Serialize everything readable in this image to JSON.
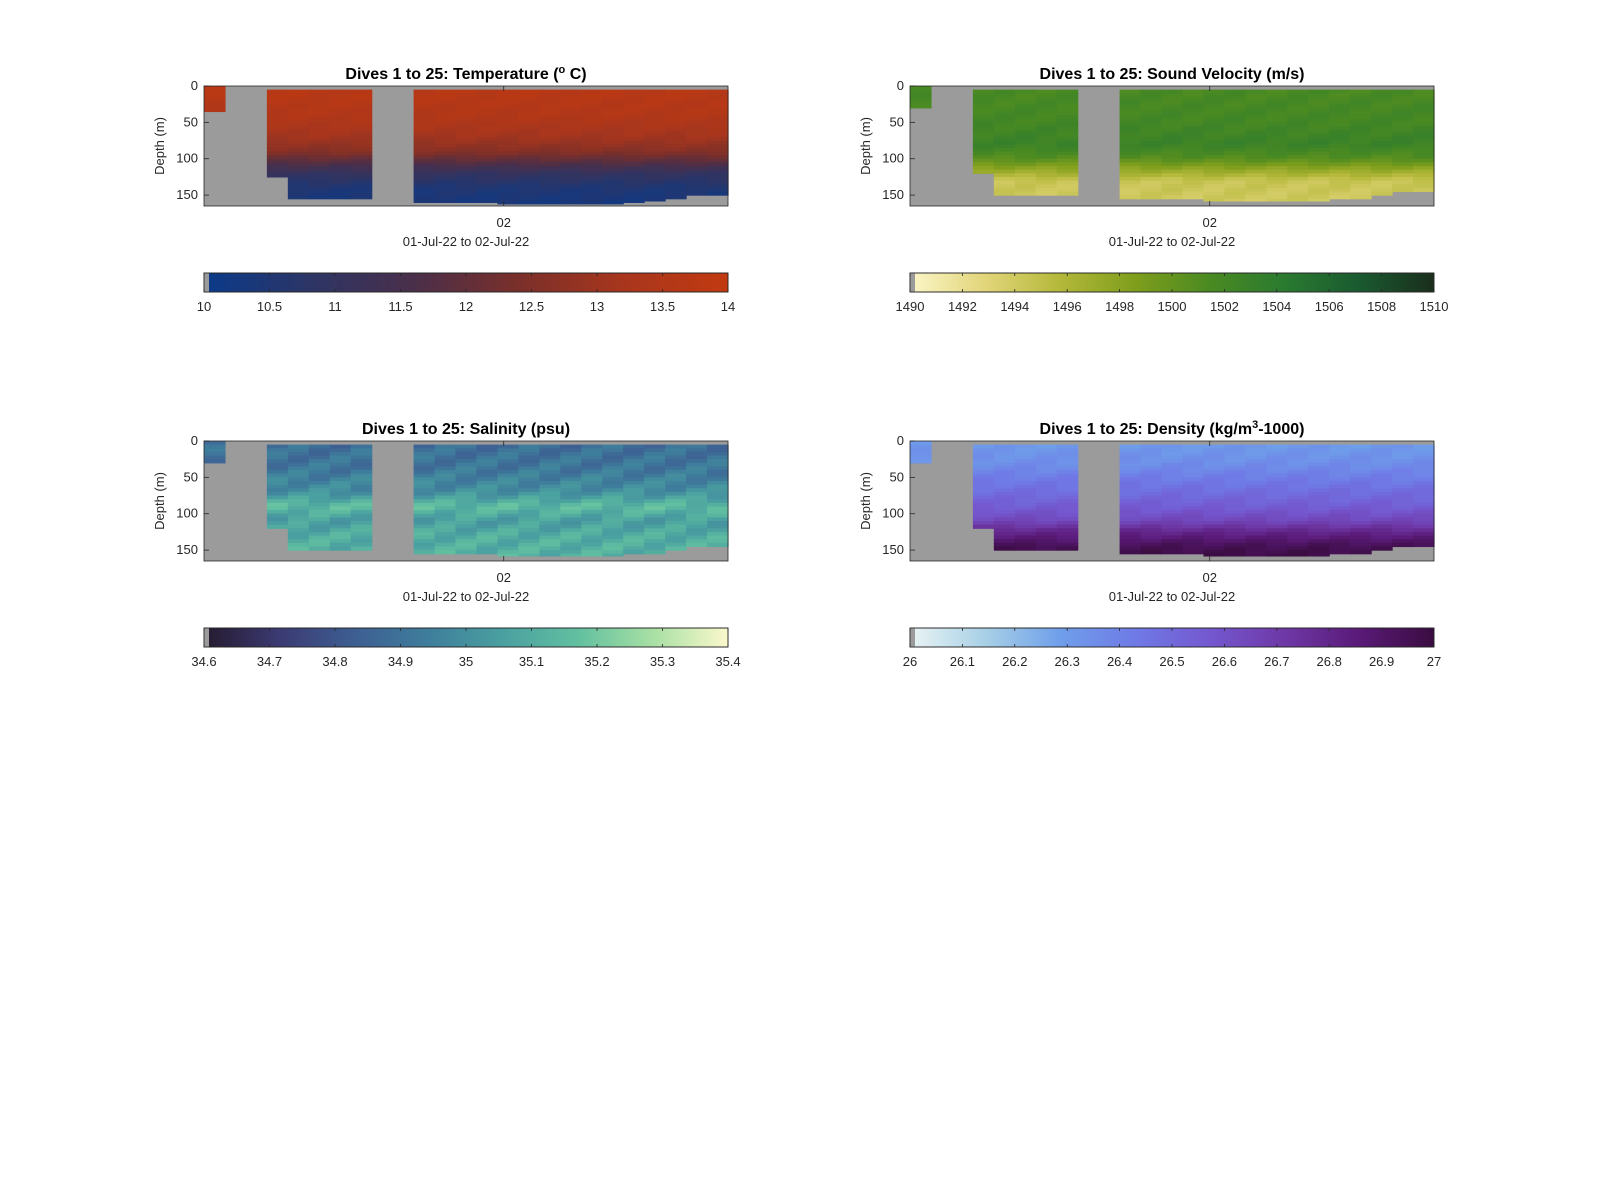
{
  "chart_data": [
    {
      "type": "heatmap",
      "title": "Dives 1 to 25: Temperature",
      "title_unit_pre": "(",
      "title_sup": "o",
      "title_unit_post": " C)",
      "ylabel": "Depth (m)",
      "xlabel": "01-Jul-22 to 02-Jul-22",
      "xtick_labels": [
        "02"
      ],
      "ytick_labels": [
        "0",
        "50",
        "100",
        "150"
      ],
      "yticks": [
        0,
        50,
        100,
        150
      ],
      "ylim": [
        0,
        165
      ],
      "ydir": "reverse",
      "dives": 25,
      "missing_dives": [
        2,
        9
      ],
      "max_depths": [
        35,
        0,
        60,
        125,
        155,
        155,
        155,
        155,
        0,
        160,
        160,
        160,
        160,
        160,
        162,
        162,
        162,
        162,
        162,
        162,
        160,
        158,
        155,
        150,
        150
      ],
      "profile": {
        "depth": [
          0,
          40,
          70,
          90,
          105,
          120,
          140,
          165
        ],
        "value": [
          13.7,
          13.5,
          13.1,
          12.6,
          11.8,
          11.0,
          10.5,
          10.3
        ]
      },
      "colorbar": {
        "min": 10,
        "max": 14,
        "ticks": [
          10,
          10.5,
          11,
          11.5,
          12,
          12.5,
          13,
          13.5,
          14
        ],
        "tick_labels": [
          "10",
          "10.5",
          "11",
          "11.5",
          "12",
          "12.5",
          "13",
          "13.5",
          "14"
        ],
        "colors": [
          "#0a3a8a",
          "#2c3566",
          "#4a2f4a",
          "#7a2f2a",
          "#a8361d",
          "#c23a10"
        ]
      },
      "nodata_color": "#9b9b9b"
    },
    {
      "type": "heatmap",
      "title": "Dives 1 to 25: Sound Velocity (m/s)",
      "ylabel": "Depth (m)",
      "xlabel": "01-Jul-22 to 02-Jul-22",
      "xtick_labels": [
        "02"
      ],
      "ytick_labels": [
        "0",
        "50",
        "100",
        "150"
      ],
      "yticks": [
        0,
        50,
        100,
        150
      ],
      "ylim": [
        0,
        165
      ],
      "ydir": "reverse",
      "dives": 25,
      "missing_dives": [
        2,
        9
      ],
      "max_depths": [
        30,
        0,
        55,
        120,
        150,
        150,
        150,
        150,
        0,
        155,
        155,
        155,
        155,
        155,
        158,
        158,
        158,
        158,
        158,
        158,
        155,
        155,
        150,
        145,
        145
      ],
      "profile": {
        "depth": [
          0,
          50,
          80,
          100,
          115,
          130,
          165
        ],
        "value": [
          1501.5,
          1502.0,
          1502.8,
          1500.8,
          1497.5,
          1494.5,
          1494.0
        ]
      },
      "colorbar": {
        "min": 1490,
        "max": 1510,
        "ticks": [
          1490,
          1492,
          1494,
          1496,
          1498,
          1500,
          1502,
          1504,
          1506,
          1508,
          1510
        ],
        "tick_labels": [
          "1490",
          "1492",
          "1494",
          "1496",
          "1498",
          "1500",
          "1502",
          "1504",
          "1506",
          "1508",
          "1510"
        ],
        "colors": [
          "#fbf6c8",
          "#e2d57a",
          "#b4b83a",
          "#7f9e1c",
          "#4a8a22",
          "#2a7a30",
          "#1a5a30",
          "#1a2e1c"
        ]
      },
      "nodata_color": "#9b9b9b"
    },
    {
      "type": "heatmap",
      "title": "Dives 1 to 25: Salinity (psu)",
      "ylabel": "Depth (m)",
      "xlabel": "01-Jul-22 to 02-Jul-22",
      "xtick_labels": [
        "02"
      ],
      "ytick_labels": [
        "0",
        "50",
        "100",
        "150"
      ],
      "yticks": [
        0,
        50,
        100,
        150
      ],
      "ylim": [
        0,
        165
      ],
      "ydir": "reverse",
      "dives": 25,
      "missing_dives": [
        2,
        9
      ],
      "max_depths": [
        30,
        0,
        60,
        120,
        150,
        150,
        150,
        150,
        0,
        155,
        155,
        155,
        155,
        155,
        158,
        158,
        158,
        158,
        158,
        158,
        155,
        155,
        150,
        145,
        145
      ],
      "profile": {
        "depth": [
          0,
          40,
          70,
          90,
          110,
          130,
          165
        ],
        "value": [
          34.88,
          34.92,
          35.0,
          35.15,
          35.05,
          35.1,
          35.12
        ]
      },
      "colorbar": {
        "min": 34.6,
        "max": 35.4,
        "ticks": [
          34.6,
          34.7,
          34.8,
          34.9,
          35.0,
          35.1,
          35.2,
          35.3,
          35.4
        ],
        "tick_labels": [
          "34.6",
          "34.7",
          "34.8",
          "34.9",
          "35",
          "35.1",
          "35.2",
          "35.3",
          "35.4"
        ],
        "colors": [
          "#251a2e",
          "#3b3a72",
          "#3d5e92",
          "#3f7e9c",
          "#4aa0a0",
          "#62c0a0",
          "#a8e0a4",
          "#fbf8cc"
        ]
      },
      "nodata_color": "#9b9b9b"
    },
    {
      "type": "heatmap",
      "title": "Dives 1 to 25: Density (kg/m",
      "title_sup": "3",
      "title_unit_post": "-1000)",
      "ylabel": "Depth (m)",
      "xlabel": "01-Jul-22 to 02-Jul-22",
      "xtick_labels": [
        "02"
      ],
      "ytick_labels": [
        "0",
        "50",
        "100",
        "150"
      ],
      "yticks": [
        0,
        50,
        100,
        150
      ],
      "ylim": [
        0,
        165
      ],
      "ydir": "reverse",
      "dives": 25,
      "missing_dives": [
        2,
        9
      ],
      "max_depths": [
        30,
        0,
        55,
        120,
        150,
        150,
        150,
        150,
        0,
        155,
        155,
        155,
        155,
        155,
        158,
        158,
        158,
        158,
        158,
        158,
        155,
        155,
        150,
        145,
        145
      ],
      "profile": {
        "depth": [
          0,
          30,
          60,
          90,
          110,
          125,
          145,
          165
        ],
        "value": [
          26.3,
          26.35,
          26.45,
          26.55,
          26.65,
          26.8,
          26.95,
          27.0
        ]
      },
      "colorbar": {
        "min": 26,
        "max": 27,
        "ticks": [
          26,
          26.1,
          26.2,
          26.3,
          26.4,
          26.5,
          26.6,
          26.7,
          26.8,
          26.9,
          27
        ],
        "tick_labels": [
          "26",
          "26.1",
          "26.2",
          "26.3",
          "26.4",
          "26.5",
          "26.6",
          "26.7",
          "26.8",
          "26.9",
          "27"
        ],
        "colors": [
          "#eaf4f4",
          "#a8d0e6",
          "#6f9fea",
          "#6f7ae6",
          "#7458d0",
          "#6e38a6",
          "#5a1a78",
          "#3a0c40"
        ]
      },
      "nodata_color": "#9b9b9b"
    }
  ]
}
